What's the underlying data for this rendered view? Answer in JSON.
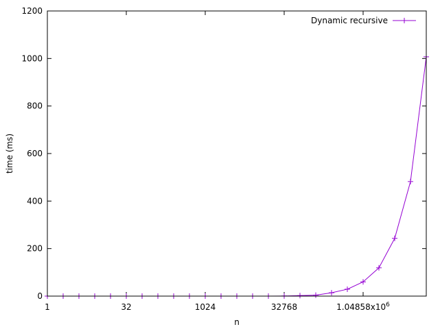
{
  "chart_data": {
    "type": "line",
    "title": "",
    "xlabel": "n",
    "ylabel": "time (ms)",
    "xscale": "log2",
    "xlim": [
      1,
      16777216
    ],
    "ylim": [
      0,
      1200
    ],
    "grid": false,
    "legend_position": "top-right",
    "x_ticks": [
      {
        "value": 1,
        "label": "1"
      },
      {
        "value": 32,
        "label": "32"
      },
      {
        "value": 1024,
        "label": "1024"
      },
      {
        "value": 32768,
        "label": "32768"
      },
      {
        "value": 1048576,
        "label": "1.04858x10",
        "exp": "6"
      }
    ],
    "y_ticks": [
      {
        "value": 0,
        "label": "0"
      },
      {
        "value": 200,
        "label": "200"
      },
      {
        "value": 400,
        "label": "400"
      },
      {
        "value": 600,
        "label": "600"
      },
      {
        "value": 800,
        "label": "800"
      },
      {
        "value": 1000,
        "label": "1000"
      },
      {
        "value": 1200,
        "label": "1200"
      }
    ],
    "series": [
      {
        "name": "Dynamic recursive",
        "color": "#9400d3",
        "marker": "plus",
        "points": [
          [
            1,
            0
          ],
          [
            2,
            0
          ],
          [
            4,
            0
          ],
          [
            8,
            0
          ],
          [
            16,
            0
          ],
          [
            32,
            0
          ],
          [
            64,
            0
          ],
          [
            128,
            0
          ],
          [
            256,
            0
          ],
          [
            512,
            0
          ],
          [
            1024,
            0
          ],
          [
            2048,
            0
          ],
          [
            4096,
            0
          ],
          [
            8192,
            0
          ],
          [
            16384,
            0
          ],
          [
            32768,
            0.5
          ],
          [
            65536,
            2
          ],
          [
            131072,
            4
          ],
          [
            262144,
            14
          ],
          [
            524288,
            29
          ],
          [
            1048576,
            60
          ],
          [
            2097152,
            119
          ],
          [
            4194304,
            243
          ],
          [
            8388608,
            482
          ],
          [
            16777216,
            1007
          ]
        ]
      }
    ]
  }
}
